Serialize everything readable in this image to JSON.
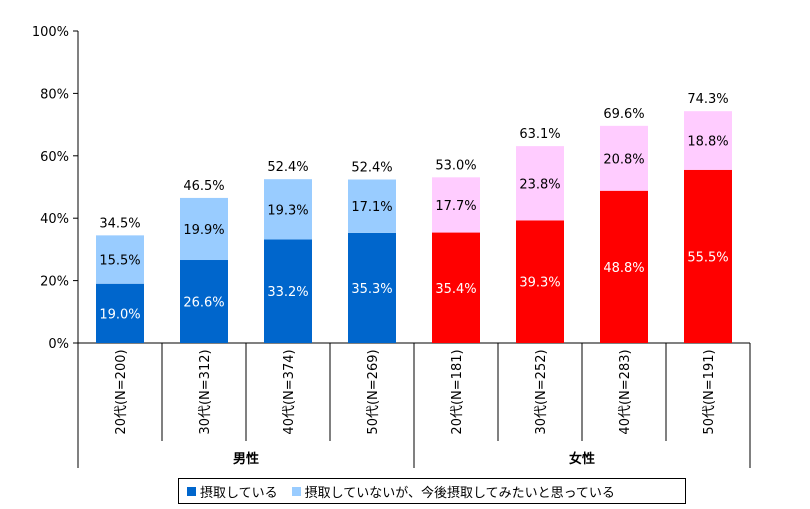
{
  "chart_data": {
    "type": "bar",
    "stacked": true,
    "ylim": [
      0,
      100
    ],
    "yticks": [
      "0%",
      "20%",
      "40%",
      "60%",
      "80%",
      "100%"
    ],
    "categories": [
      "20代(N=200)",
      "30代(N=312)",
      "40代(N=374)",
      "50代(N=269)",
      "20代(N=181)",
      "30代(N=252)",
      "40代(N=283)",
      "50代(N=191)"
    ],
    "groups": [
      {
        "label": "男性",
        "start": 0,
        "count": 4
      },
      {
        "label": "女性",
        "start": 4,
        "count": 4
      }
    ],
    "series": [
      {
        "name": "摂取している",
        "values": [
          19.0,
          26.6,
          33.2,
          35.3,
          35.4,
          39.3,
          48.8,
          55.5
        ],
        "labels": [
          "19.0%",
          "26.6%",
          "33.2%",
          "35.3%",
          "35.4%",
          "39.3%",
          "48.8%",
          "55.5%"
        ]
      },
      {
        "name": "摂取していないが、今後摂取してみたいと思っている",
        "values": [
          15.5,
          19.9,
          19.3,
          17.1,
          17.7,
          23.8,
          20.8,
          18.8
        ],
        "labels": [
          "15.5%",
          "19.9%",
          "19.3%",
          "17.1%",
          "17.7%",
          "23.8%",
          "20.8%",
          "18.8%"
        ]
      }
    ],
    "totals": [
      "34.5%",
      "46.5%",
      "52.4%",
      "52.4%",
      "53.0%",
      "63.1%",
      "69.6%",
      "74.3%"
    ],
    "colors": {
      "male_taking": "#0066CC",
      "male_want": "#99CCFF",
      "female_taking": "#FF0000",
      "female_want": "#FFCCFF"
    },
    "legend_position": "bottom",
    "grid": false
  }
}
